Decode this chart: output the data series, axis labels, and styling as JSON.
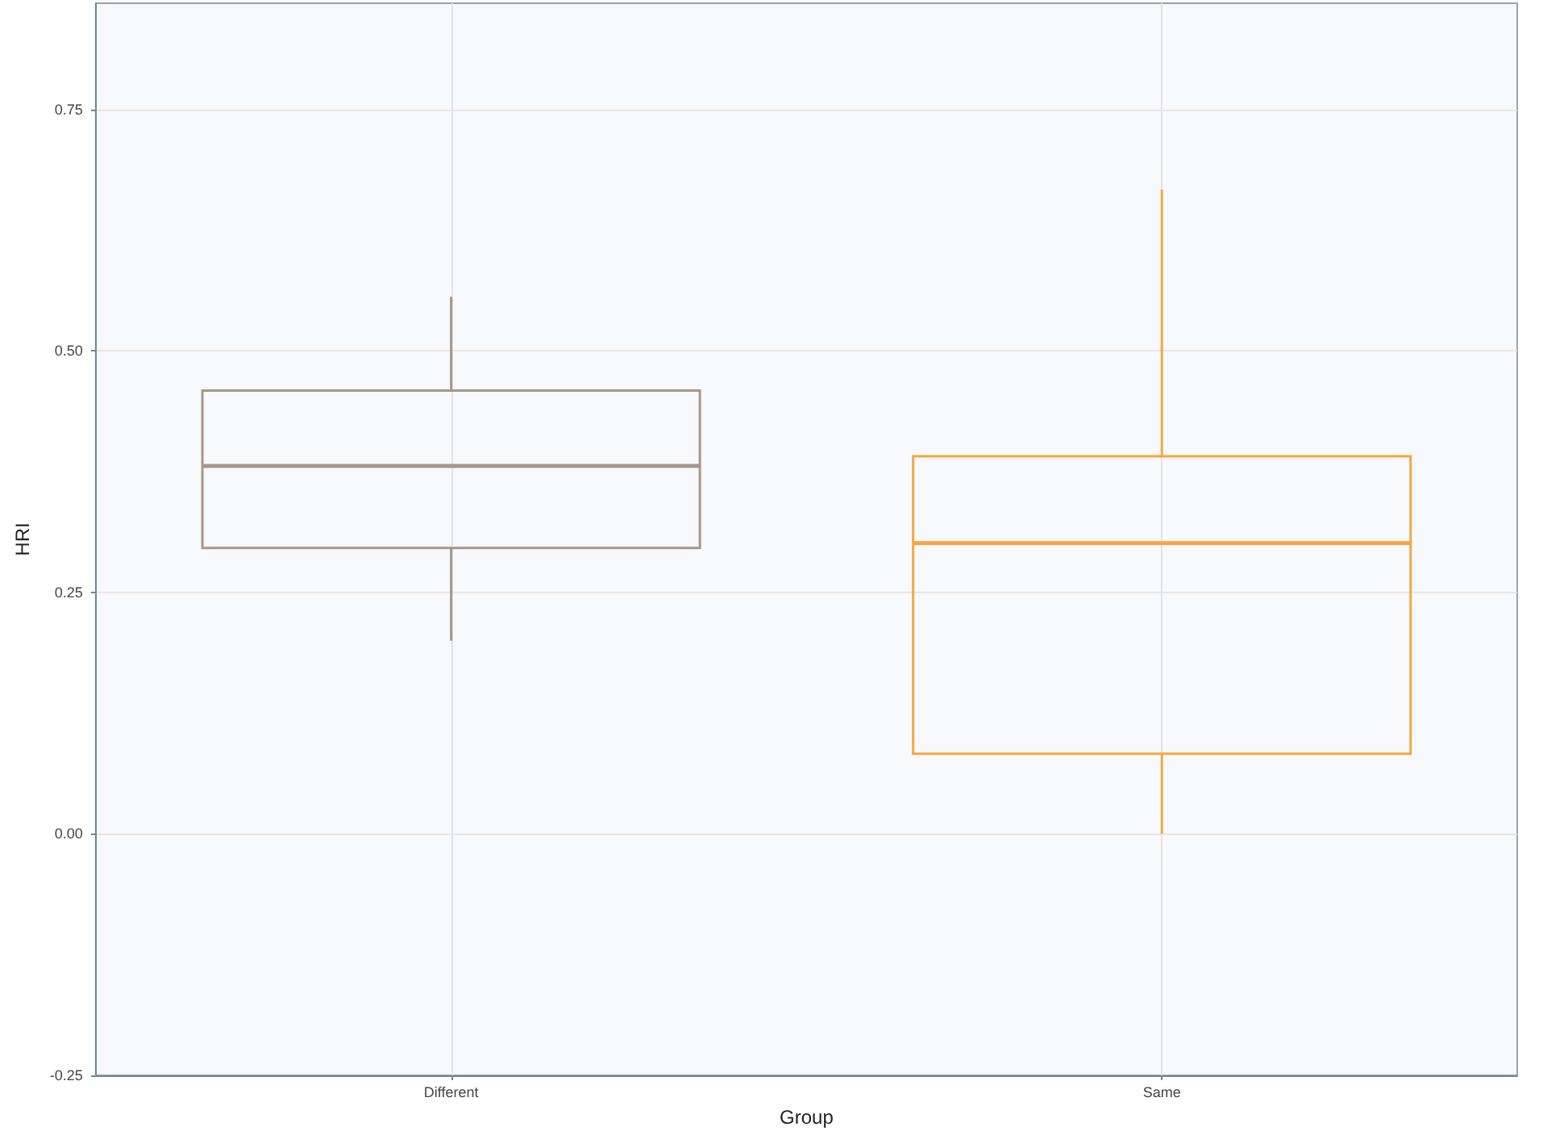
{
  "chart_data": {
    "type": "box",
    "xlabel": "Group",
    "ylabel": "HRI",
    "categories": [
      "Different",
      "Same"
    ],
    "boxes": [
      {
        "low": 0.2,
        "q1": 0.296,
        "median": 0.381,
        "q3": 0.459,
        "high": 0.556
      },
      {
        "low": 0.0,
        "q1": 0.083,
        "median": 0.301,
        "q3": 0.391,
        "high": 0.667
      }
    ],
    "colors": [
      "#a8968a",
      "#f5a83f"
    ],
    "ylim": [
      -0.25,
      0.86
    ],
    "yticks": [
      -0.25,
      {
        "value": 0.0,
        "label": "0.00"
      },
      {
        "value": 0.25,
        "label": "0.25"
      },
      {
        "value": 0.5,
        "label": "0.50"
      },
      0.75
    ],
    "grid": true
  }
}
